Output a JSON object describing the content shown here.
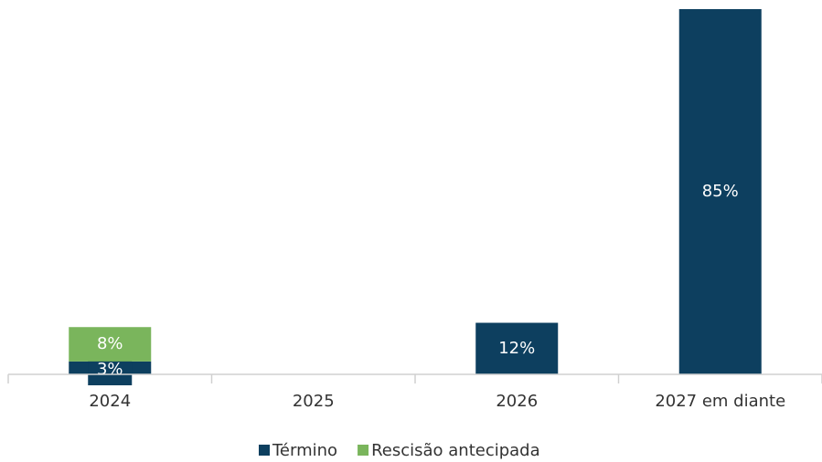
{
  "chart_data": {
    "type": "stacked_bar",
    "categories": [
      "2024",
      "2025",
      "2026",
      "2027 em diante"
    ],
    "series": [
      {
        "name": "Término",
        "color": "#0d3f5f",
        "values": [
          3,
          null,
          12,
          85
        ],
        "value_labels": [
          "3%",
          null,
          "12%",
          "85%"
        ]
      },
      {
        "name": "Rescisão antecipada",
        "color": "#7ab55c",
        "values": [
          8,
          null,
          null,
          null
        ],
        "value_labels": [
          "8%",
          null,
          null,
          null
        ]
      }
    ],
    "legend": "bottom"
  }
}
